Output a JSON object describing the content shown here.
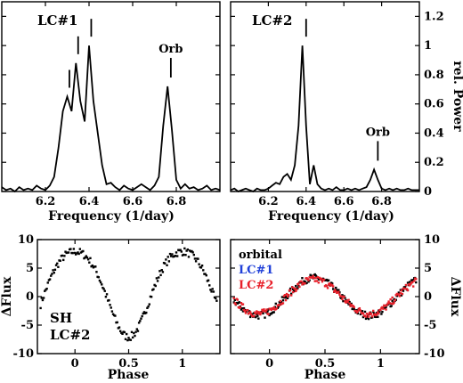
{
  "chart_data": [
    {
      "type": "line",
      "panel_label": "LC#1",
      "xlabel": "Frequency (1/day)",
      "ylabel": "rel. Power",
      "xlim": [
        6.0,
        7.0
      ],
      "ylim": [
        0,
        1.3
      ],
      "xticks": [
        "6.2",
        "6.4",
        "6.6",
        "6.8"
      ],
      "yticks": [
        "0",
        "0.2",
        "0.4",
        "0.6",
        "0.8",
        "1",
        "1.2"
      ],
      "series": [
        {
          "x": [
            6.0,
            6.02,
            6.04,
            6.06,
            6.08,
            6.1,
            6.12,
            6.14,
            6.16,
            6.18,
            6.2,
            6.22,
            6.24,
            6.26,
            6.28,
            6.3,
            6.32,
            6.34,
            6.36,
            6.38,
            6.4,
            6.42,
            6.44,
            6.46,
            6.48,
            6.5,
            6.52,
            6.54,
            6.56,
            6.58,
            6.6,
            6.62,
            6.64,
            6.66,
            6.68,
            6.7,
            6.72,
            6.74,
            6.76,
            6.78,
            6.8,
            6.82,
            6.84,
            6.86,
            6.88,
            6.9,
            6.92,
            6.94,
            6.96,
            6.98,
            7.0
          ],
          "y": [
            0.03,
            0.01,
            0.02,
            0.0,
            0.03,
            0.01,
            0.02,
            0.01,
            0.04,
            0.02,
            0.01,
            0.04,
            0.1,
            0.3,
            0.55,
            0.65,
            0.55,
            0.88,
            0.62,
            0.48,
            1.0,
            0.62,
            0.4,
            0.18,
            0.05,
            0.06,
            0.03,
            0.01,
            0.04,
            0.02,
            0.01,
            0.03,
            0.05,
            0.03,
            0.01,
            0.04,
            0.1,
            0.45,
            0.72,
            0.42,
            0.08,
            0.02,
            0.05,
            0.02,
            0.03,
            0.01,
            0.02,
            0.04,
            0.01,
            0.02,
            0.01
          ]
        }
      ],
      "annotations": [
        {
          "text": "",
          "x": 6.31
        },
        {
          "text": "",
          "x": 6.35
        },
        {
          "text": "",
          "x": 6.41
        },
        {
          "text": "Orb",
          "x": 6.775
        }
      ]
    },
    {
      "type": "line",
      "panel_label": "LC#2",
      "xlabel": "Frequency (1/day)",
      "ylabel": "rel. Power",
      "xlim": [
        6.0,
        7.0
      ],
      "ylim": [
        0,
        1.3
      ],
      "xticks": [
        "6.2",
        "6.4",
        "6.6",
        "6.8"
      ],
      "yticks": [
        "0",
        "0.2",
        "0.4",
        "0.6",
        "0.8",
        "1",
        "1.2"
      ],
      "series": [
        {
          "x": [
            6.0,
            6.02,
            6.04,
            6.06,
            6.08,
            6.1,
            6.12,
            6.14,
            6.16,
            6.18,
            6.2,
            6.22,
            6.24,
            6.26,
            6.28,
            6.3,
            6.32,
            6.34,
            6.36,
            6.38,
            6.4,
            6.42,
            6.44,
            6.46,
            6.48,
            6.5,
            6.52,
            6.54,
            6.56,
            6.58,
            6.6,
            6.62,
            6.64,
            6.66,
            6.68,
            6.7,
            6.72,
            6.74,
            6.76,
            6.78,
            6.8,
            6.82,
            6.84,
            6.86,
            6.88,
            6.9,
            6.92,
            6.94,
            6.96,
            6.98,
            7.0
          ],
          "y": [
            0.01,
            0.02,
            0.0,
            0.01,
            0.02,
            0.01,
            0.0,
            0.02,
            0.01,
            0.01,
            0.02,
            0.04,
            0.06,
            0.05,
            0.1,
            0.12,
            0.08,
            0.18,
            0.45,
            1.0,
            0.45,
            0.05,
            0.18,
            0.05,
            0.02,
            0.01,
            0.02,
            0.01,
            0.03,
            0.01,
            0.01,
            0.02,
            0.01,
            0.02,
            0.01,
            0.02,
            0.03,
            0.08,
            0.15,
            0.08,
            0.02,
            0.01,
            0.02,
            0.01,
            0.02,
            0.01,
            0.01,
            0.02,
            0.01,
            0.01,
            0.01
          ]
        }
      ],
      "annotations": [
        {
          "text": "",
          "x": 6.4
        },
        {
          "text": "Orb",
          "x": 6.78
        }
      ]
    },
    {
      "type": "scatter",
      "panel_label": "SH\nLC#2",
      "xlabel": "Phase",
      "ylabel": "ΔFlux",
      "xlim": [
        -0.35,
        1.35
      ],
      "ylim": [
        -10,
        10
      ],
      "xticks": [
        "0",
        "0.5",
        "1"
      ],
      "yticks": [
        "-10",
        "-5",
        "0",
        "5",
        "10"
      ],
      "series": [
        {
          "model": "amp 7.5, offset 1.3, peak at phase 0, trough near phase 0.45",
          "color": "#000000"
        }
      ]
    },
    {
      "type": "scatter",
      "xlabel": "Phase",
      "ylabel": "ΔFlux",
      "xlim": [
        -0.35,
        1.35
      ],
      "ylim": [
        -10,
        10
      ],
      "xticks": [
        "0",
        "0.5",
        "1"
      ],
      "yticks": [
        "-10",
        "-5",
        "0",
        "5",
        "10"
      ],
      "legend": [
        "orbital",
        "LC#1",
        "LC#2"
      ],
      "series": [
        {
          "name": "orbital",
          "color": "#000000",
          "model": "amp 3.3, peak near phase 0.4"
        },
        {
          "name": "LC#1",
          "color": "#1f3fd8",
          "model": "not visibly plotted"
        },
        {
          "name": "LC#2",
          "color": "#e8202a",
          "model": "amp 3.0, peak near phase 0.4"
        }
      ]
    }
  ]
}
